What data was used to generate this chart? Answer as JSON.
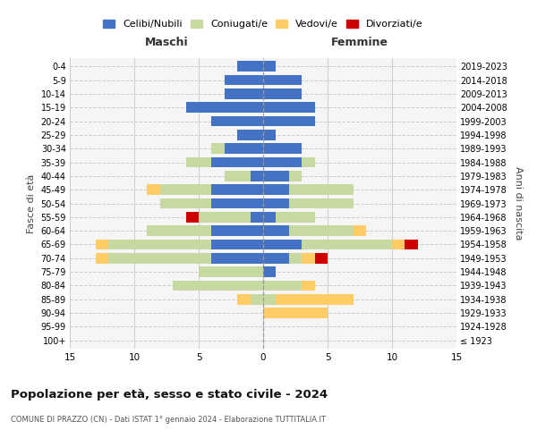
{
  "age_groups": [
    "100+",
    "95-99",
    "90-94",
    "85-89",
    "80-84",
    "75-79",
    "70-74",
    "65-69",
    "60-64",
    "55-59",
    "50-54",
    "45-49",
    "40-44",
    "35-39",
    "30-34",
    "25-29",
    "20-24",
    "15-19",
    "10-14",
    "5-9",
    "0-4"
  ],
  "birth_years": [
    "≤ 1923",
    "1924-1928",
    "1929-1933",
    "1934-1938",
    "1939-1943",
    "1944-1948",
    "1949-1953",
    "1954-1958",
    "1959-1963",
    "1964-1968",
    "1969-1973",
    "1974-1978",
    "1979-1983",
    "1984-1988",
    "1989-1993",
    "1994-1998",
    "1999-2003",
    "2004-2008",
    "2009-2013",
    "2014-2018",
    "2019-2023"
  ],
  "maschi": {
    "celibi": [
      0,
      0,
      0,
      0,
      0,
      0,
      4,
      4,
      4,
      1,
      4,
      4,
      1,
      4,
      3,
      2,
      4,
      6,
      3,
      3,
      2
    ],
    "coniugati": [
      0,
      0,
      0,
      1,
      7,
      5,
      8,
      8,
      5,
      4,
      4,
      4,
      2,
      2,
      1,
      0,
      0,
      0,
      0,
      0,
      0
    ],
    "vedovi": [
      0,
      0,
      0,
      1,
      0,
      0,
      1,
      1,
      0,
      0,
      0,
      1,
      0,
      0,
      0,
      0,
      0,
      0,
      0,
      0,
      0
    ],
    "divorziati": [
      0,
      0,
      0,
      0,
      0,
      0,
      0,
      0,
      0,
      1,
      0,
      0,
      0,
      0,
      0,
      0,
      0,
      0,
      0,
      0,
      0
    ]
  },
  "femmine": {
    "celibi": [
      0,
      0,
      0,
      0,
      0,
      1,
      2,
      3,
      2,
      1,
      2,
      2,
      2,
      3,
      3,
      1,
      4,
      4,
      3,
      3,
      1
    ],
    "coniugati": [
      0,
      0,
      0,
      1,
      3,
      0,
      1,
      7,
      5,
      3,
      5,
      5,
      1,
      1,
      0,
      0,
      0,
      0,
      0,
      0,
      0
    ],
    "vedovi": [
      0,
      0,
      5,
      6,
      1,
      0,
      1,
      1,
      1,
      0,
      0,
      0,
      0,
      0,
      0,
      0,
      0,
      0,
      0,
      0,
      0
    ],
    "divorziati": [
      0,
      0,
      0,
      0,
      0,
      0,
      1,
      1,
      0,
      0,
      0,
      0,
      0,
      0,
      0,
      0,
      0,
      0,
      0,
      0,
      0
    ]
  },
  "colors": {
    "celibi": "#4472C4",
    "coniugati": "#C5D9A0",
    "vedovi": "#FFCC66",
    "divorziati": "#CC0000"
  },
  "legend_labels": [
    "Celibi/Nubili",
    "Coniugati/e",
    "Vedovi/e",
    "Divorziati/e"
  ],
  "title": "Popolazione per età, sesso e stato civile - 2024",
  "subtitle": "COMUNE DI PRAZZO (CN) - Dati ISTAT 1° gennaio 2024 - Elaborazione TUTTITALIA.IT",
  "xlabel_left": "Maschi",
  "xlabel_right": "Femmine",
  "ylabel_left": "Fasce di età",
  "ylabel_right": "Anni di nascita",
  "xlim": 15,
  "bg_color": "#f5f5f5",
  "grid_color": "#cccccc"
}
